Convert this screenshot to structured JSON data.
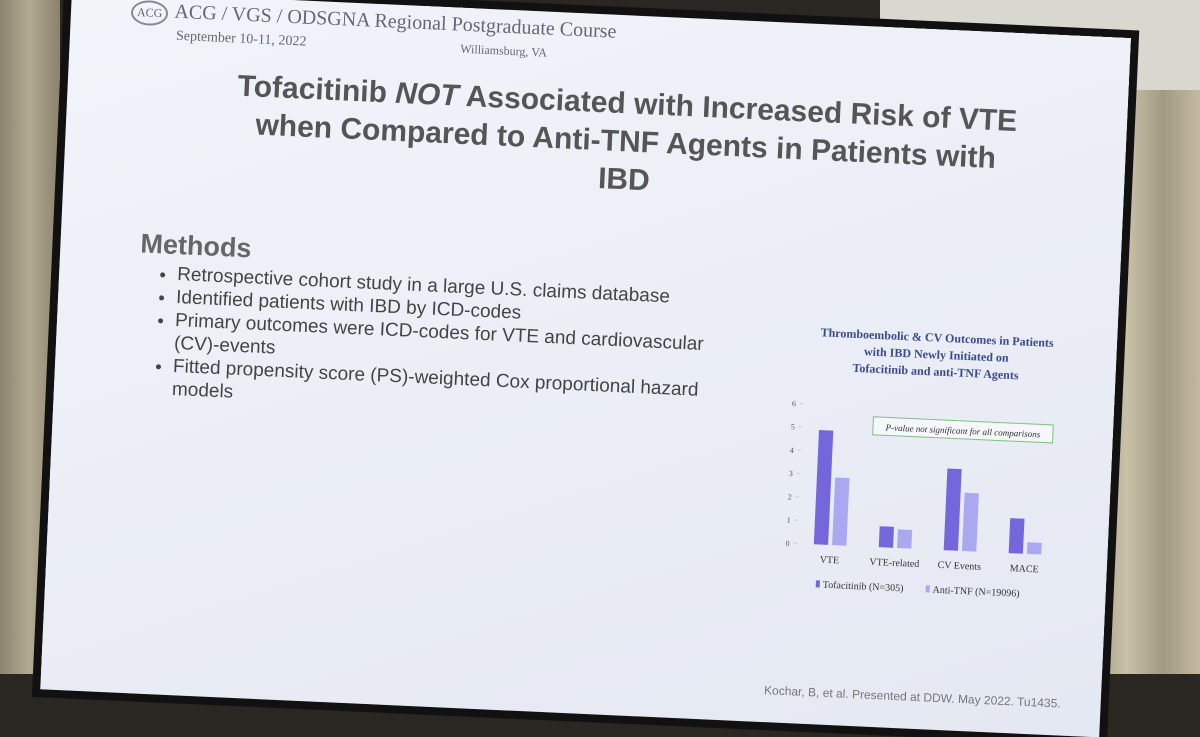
{
  "header": {
    "logo": "ACG",
    "course": "ACG / VGS / ODSGNA Regional Postgraduate Course",
    "dates": "September 10-11, 2022",
    "location": "Williamsburg, VA"
  },
  "title": {
    "before": "Tofacitinib",
    "emphasis": "NOT",
    "after": "Associated with Increased Risk of VTE when Compared to Anti-TNF Agents in Patients with IBD"
  },
  "methods": {
    "heading": "Methods",
    "bullets": [
      "Retrospective cohort study in a large U.S. claims database",
      "Identified patients with IBD by ICD-codes",
      "Primary outcomes were ICD-codes for VTE and cardiovascular (CV)-events",
      "Fitted propensity score (PS)-weighted Cox proportional hazard models"
    ]
  },
  "chart_data": {
    "type": "bar",
    "title_lines": [
      "Thromboembolic & CV Outcomes in Patients",
      "with IBD Newly Initiated on",
      "Tofacitinib and anti-TNF Agents"
    ],
    "annotation": "P-value not significant for all comparisons",
    "categories": [
      "VTE",
      "VTE-related",
      "CV Events",
      "MACE"
    ],
    "series": [
      {
        "name": "Tofacitinib (N=305)",
        "color": "#7467dc",
        "values": [
          4.9,
          0.9,
          3.5,
          1.5
        ]
      },
      {
        "name": "Anti-TNF (N=19096)",
        "color": "#aaa8f0",
        "values": [
          2.9,
          0.8,
          2.5,
          0.5
        ]
      }
    ],
    "ylim": [
      0,
      6
    ],
    "yticks": [
      0,
      1,
      2,
      3,
      4,
      5,
      6
    ]
  },
  "citation": "Kochar, B, et al. Presented at DDW. May 2022. Tu1435."
}
